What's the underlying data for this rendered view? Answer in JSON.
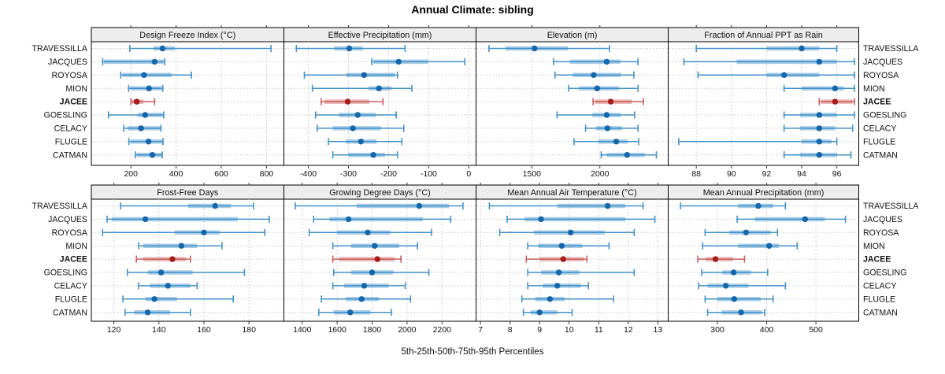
{
  "title": "Annual Climate: sibling",
  "caption": "5th-25th-50th-75th-95th Percentiles",
  "colors": {
    "normal_dot": "#1467a8",
    "normal_line": "#4191c9",
    "highlight_dot": "#a31d1d",
    "highlight_line": "#cc5c5c",
    "strip_bg": "#ededed",
    "panel_bg": "#ffffff",
    "grid": "#c6c6c6",
    "border": "#000000",
    "tick": "#333333"
  },
  "chart_data": {
    "type": "dotplot-percentiles",
    "title": "Annual Climate: sibling",
    "legend_caption": "5th-25th-50th-75th-95th Percentiles",
    "percentile_levels": [
      5,
      25,
      50,
      75,
      95
    ],
    "sites": [
      "TRAVESSILLA",
      "JACQUES",
      "ROYOSA",
      "MION",
      "JACEE",
      "GOESLING",
      "CELACY",
      "FLUGLE",
      "CATMAN"
    ],
    "highlighted_site": "JACEE",
    "panels": [
      {
        "title": "Design Freeze Index (°C)",
        "grid_row": 0,
        "grid_col": 0,
        "ticks": [
          200,
          400,
          600,
          800
        ],
        "xlim": [
          25,
          877
        ],
        "values": [
          [
            195,
            300,
            340,
            395,
            820
          ],
          [
            75,
            80,
            305,
            345,
            350
          ],
          [
            155,
            162,
            258,
            380,
            468
          ],
          [
            190,
            197,
            280,
            337,
            341
          ],
          [
            200,
            205,
            226,
            255,
            305
          ],
          [
            101,
            229,
            263,
            340,
            345
          ],
          [
            168,
            185,
            245,
            330,
            333
          ],
          [
            191,
            200,
            278,
            340,
            342
          ],
          [
            220,
            226,
            295,
            336,
            339
          ]
        ]
      },
      {
        "title": "Effective Precipitation (mm)",
        "grid_row": 0,
        "grid_col": 1,
        "ticks": [
          -400,
          -300,
          -200,
          -100,
          0
        ],
        "xlim": [
          -461,
          18
        ],
        "values": [
          [
            -430,
            -336,
            -298,
            -264,
            -159
          ],
          [
            -242,
            -238,
            -175,
            -101,
            -10
          ],
          [
            -410,
            -306,
            -261,
            -184,
            -178
          ],
          [
            -390,
            -250,
            -224,
            -193,
            -142
          ],
          [
            -368,
            -360,
            -302,
            -248,
            -214
          ],
          [
            -382,
            -324,
            -277,
            -232,
            -181
          ],
          [
            -378,
            -339,
            -289,
            -219,
            -162
          ],
          [
            -350,
            -307,
            -269,
            -230,
            -167
          ],
          [
            -339,
            -300,
            -238,
            -209,
            -178
          ]
        ]
      },
      {
        "title": "Elevation (m)",
        "grid_row": 0,
        "grid_col": 2,
        "ticks": [
          1500,
          2000
        ],
        "xlim": [
          1090,
          2502
        ],
        "values": [
          [
            1185,
            1305,
            1520,
            1765,
            2070
          ],
          [
            1660,
            1780,
            2050,
            2150,
            2280
          ],
          [
            1670,
            1800,
            1955,
            2155,
            2250
          ],
          [
            1770,
            1845,
            1980,
            2140,
            2280
          ],
          [
            1950,
            1965,
            2080,
            2235,
            2320
          ],
          [
            1685,
            1945,
            2050,
            2155,
            2255
          ],
          [
            1895,
            1970,
            2055,
            2165,
            2280
          ],
          [
            1810,
            1990,
            2120,
            2205,
            2285
          ],
          [
            2010,
            2050,
            2200,
            2330,
            2415
          ]
        ]
      },
      {
        "title": "Fraction of Annual PPT as Rain",
        "grid_row": 0,
        "grid_col": 3,
        "ticks": [
          88,
          90,
          92,
          94,
          96
        ],
        "xlim": [
          86.4,
          97.25
        ],
        "values": [
          [
            88.0,
            92.0,
            94.0,
            95.0,
            96.0
          ],
          [
            87.3,
            90.3,
            95.0,
            96.0,
            97.0
          ],
          [
            88.1,
            92.0,
            93.0,
            95.0,
            97.0
          ],
          [
            93.0,
            94.0,
            95.9,
            96.4,
            97.0
          ],
          [
            95.0,
            95.1,
            95.9,
            96.9,
            97.0
          ],
          [
            93.0,
            93.9,
            95.0,
            96.0,
            97.0
          ],
          [
            93.0,
            93.9,
            95.0,
            95.9,
            96.9
          ],
          [
            87.0,
            94.0,
            95.0,
            95.7,
            96.0
          ],
          [
            93.0,
            93.9,
            95.0,
            96.0,
            96.8
          ]
        ]
      },
      {
        "title": "Frost-Free Days",
        "grid_row": 1,
        "grid_col": 0,
        "ticks": [
          120,
          140,
          160,
          180
        ],
        "xlim": [
          110,
          195.5
        ],
        "values": [
          [
            123,
            153,
            165,
            172,
            182
          ],
          [
            117,
            119,
            134,
            175,
            189
          ],
          [
            115,
            147,
            160,
            167,
            187
          ],
          [
            131,
            133,
            150,
            157,
            168
          ],
          [
            130,
            133,
            146,
            152,
            154
          ],
          [
            126,
            135,
            141,
            155,
            178
          ],
          [
            131,
            136,
            144,
            154,
            157
          ],
          [
            124,
            134,
            138,
            148,
            173
          ],
          [
            125,
            129,
            135,
            145,
            154
          ]
        ]
      },
      {
        "title": "Growing Degree Days (°C)",
        "grid_row": 1,
        "grid_col": 1,
        "ticks": [
          1400,
          1600,
          1800,
          2000,
          2200
        ],
        "xlim": [
          1295,
          2395
        ],
        "values": [
          [
            1360,
            1710,
            2070,
            2240,
            2320
          ],
          [
            1465,
            1555,
            1665,
            2090,
            2250
          ],
          [
            1440,
            1600,
            1775,
            1905,
            2140
          ],
          [
            1575,
            1680,
            1815,
            1955,
            2060
          ],
          [
            1575,
            1610,
            1830,
            1930,
            1965
          ],
          [
            1580,
            1680,
            1800,
            1920,
            2125
          ],
          [
            1575,
            1640,
            1755,
            1895,
            1990
          ],
          [
            1510,
            1650,
            1740,
            1840,
            2020
          ],
          [
            1495,
            1580,
            1675,
            1790,
            1910
          ]
        ]
      },
      {
        "title": "Mean Annual Air Temperature (°C)",
        "grid_row": 1,
        "grid_col": 2,
        "ticks": [
          7,
          8,
          9,
          10,
          11,
          12,
          13
        ],
        "xlim": [
          6.85,
          13.35
        ],
        "values": [
          [
            7.3,
            9.6,
            11.3,
            11.9,
            12.5
          ],
          [
            7.9,
            8.5,
            9.05,
            11.9,
            12.9
          ],
          [
            7.65,
            8.8,
            10.05,
            11.2,
            12.2
          ],
          [
            8.6,
            8.95,
            9.75,
            10.45,
            11.35
          ],
          [
            8.55,
            9.0,
            9.8,
            10.5,
            10.6
          ],
          [
            8.6,
            9.05,
            9.65,
            10.35,
            12.2
          ],
          [
            8.6,
            9.1,
            9.6,
            10.4,
            10.65
          ],
          [
            8.4,
            8.85,
            9.35,
            9.85,
            11.5
          ],
          [
            8.45,
            8.7,
            9.0,
            9.6,
            10.1
          ]
        ]
      },
      {
        "title": "Mean Annual Precipitation (mm)",
        "grid_row": 1,
        "grid_col": 3,
        "ticks": [
          300,
          400,
          500
        ],
        "xlim": [
          200,
          587
        ],
        "values": [
          [
            225,
            342,
            383,
            413,
            438
          ],
          [
            340,
            376,
            478,
            518,
            560
          ],
          [
            275,
            324,
            358,
            408,
            422
          ],
          [
            270,
            342,
            405,
            425,
            462
          ],
          [
            260,
            276,
            296,
            332,
            355
          ],
          [
            268,
            310,
            333,
            368,
            402
          ],
          [
            262,
            280,
            317,
            363,
            438
          ],
          [
            275,
            300,
            334,
            388,
            413
          ],
          [
            280,
            308,
            348,
            390,
            396
          ]
        ]
      }
    ]
  }
}
